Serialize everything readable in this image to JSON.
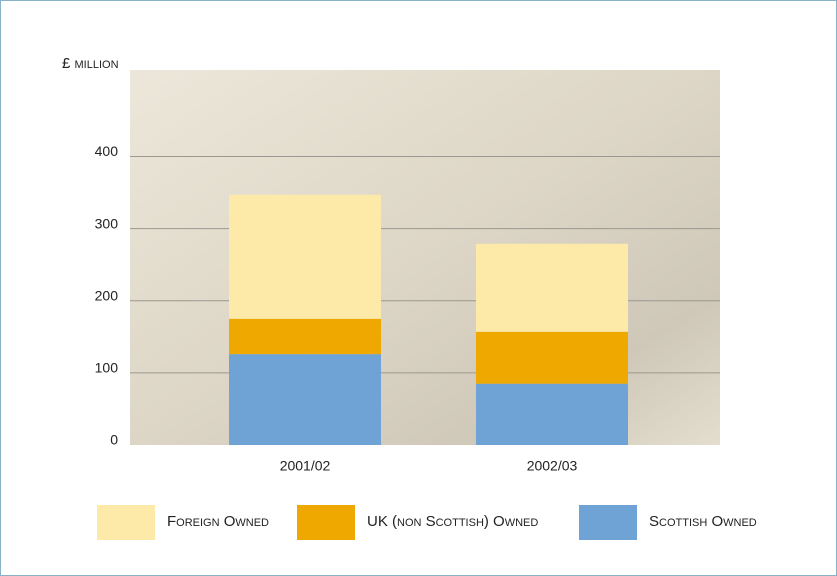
{
  "chart_data": {
    "type": "stacked_bar",
    "y_axis_label": "£ million",
    "categories": [
      "2001/02",
      "2002/03"
    ],
    "series": [
      {
        "name": "Scottish Owned",
        "color": "#6fa3d6",
        "values": [
          126,
          85
        ]
      },
      {
        "name": "UK (non Scottish) Owned",
        "color": "#eea800",
        "values": [
          49,
          72
        ]
      },
      {
        "name": "Foreign Owned",
        "color": "#fde9a8",
        "values": [
          172,
          122
        ]
      }
    ],
    "legend_order": [
      2,
      1,
      0
    ],
    "ylim": [
      0,
      520
    ],
    "yticks": [
      0,
      100,
      200,
      300,
      400
    ],
    "grid": true
  }
}
